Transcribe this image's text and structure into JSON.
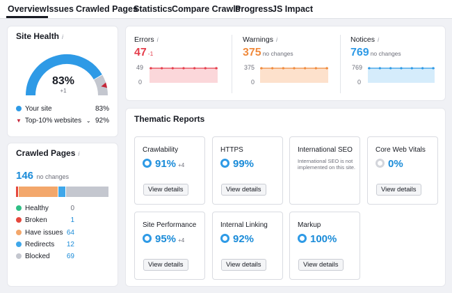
{
  "tabs": [
    "Overview",
    "Issues",
    "Crawled Pages",
    "Statistics",
    "Compare Crawls",
    "Progress",
    "JS Impact"
  ],
  "site_health": {
    "title": "Site Health",
    "score": "83%",
    "change": "+1",
    "score_fraction": 0.83,
    "top_fraction": 0.92,
    "legend": [
      {
        "label": "Your site",
        "value": "83%"
      },
      {
        "label": "Top-10% websites",
        "value": "92%"
      }
    ]
  },
  "crawled_pages": {
    "title": "Crawled Pages",
    "count": "146",
    "change": "no changes",
    "items": [
      {
        "label": "Healthy",
        "value": "0",
        "color": "#2fbf85",
        "count": 0
      },
      {
        "label": "Broken",
        "value": "1",
        "color": "#e5483d",
        "count": 1
      },
      {
        "label": "Have issues",
        "value": "64",
        "color": "#f3a76b",
        "count": 64
      },
      {
        "label": "Redirects",
        "value": "12",
        "color": "#3fa7ea",
        "count": 12
      },
      {
        "label": "Blocked",
        "value": "69",
        "color": "#c4c7cf",
        "count": 69
      }
    ]
  },
  "metrics": {
    "errors": {
      "label": "Errors",
      "value": "47",
      "change": "-1",
      "max_label": "49",
      "min_label": "0",
      "color": "#e53e4c",
      "fill": "#fbd7da"
    },
    "warnings": {
      "label": "Warnings",
      "value": "375",
      "change": "no changes",
      "max_label": "375",
      "min_label": "0",
      "color": "#f08a3c",
      "fill": "#fde1cc"
    },
    "notices": {
      "label": "Notices",
      "value": "769",
      "change": "no changes",
      "max_label": "769",
      "min_label": "0",
      "color": "#2e9ae6",
      "fill": "#d5ecfb"
    }
  },
  "thematic": {
    "title": "Thematic Reports",
    "button_label": "View details",
    "reports": [
      {
        "name": "Crawlability",
        "value": "91%",
        "change": "+4"
      },
      {
        "name": "HTTPS",
        "value": "99%",
        "change": ""
      },
      {
        "name": "International SEO",
        "value": "",
        "change": "",
        "note": "International SEO is not implemented on this site."
      },
      {
        "name": "Core Web Vitals",
        "value": "0%",
        "change": ""
      },
      {
        "name": "Site Performance",
        "value": "95%",
        "change": "+4"
      },
      {
        "name": "Internal Linking",
        "value": "92%",
        "change": ""
      },
      {
        "name": "Markup",
        "value": "100%",
        "change": ""
      }
    ]
  },
  "colors": {
    "accent": "#2e9ae6",
    "gauge_grey": "#c4c7cf",
    "marker": "#c5283a"
  },
  "icons": {
    "info": "info-icon",
    "chevron": "chevron-down-icon",
    "marker": "triangle-down-icon"
  }
}
